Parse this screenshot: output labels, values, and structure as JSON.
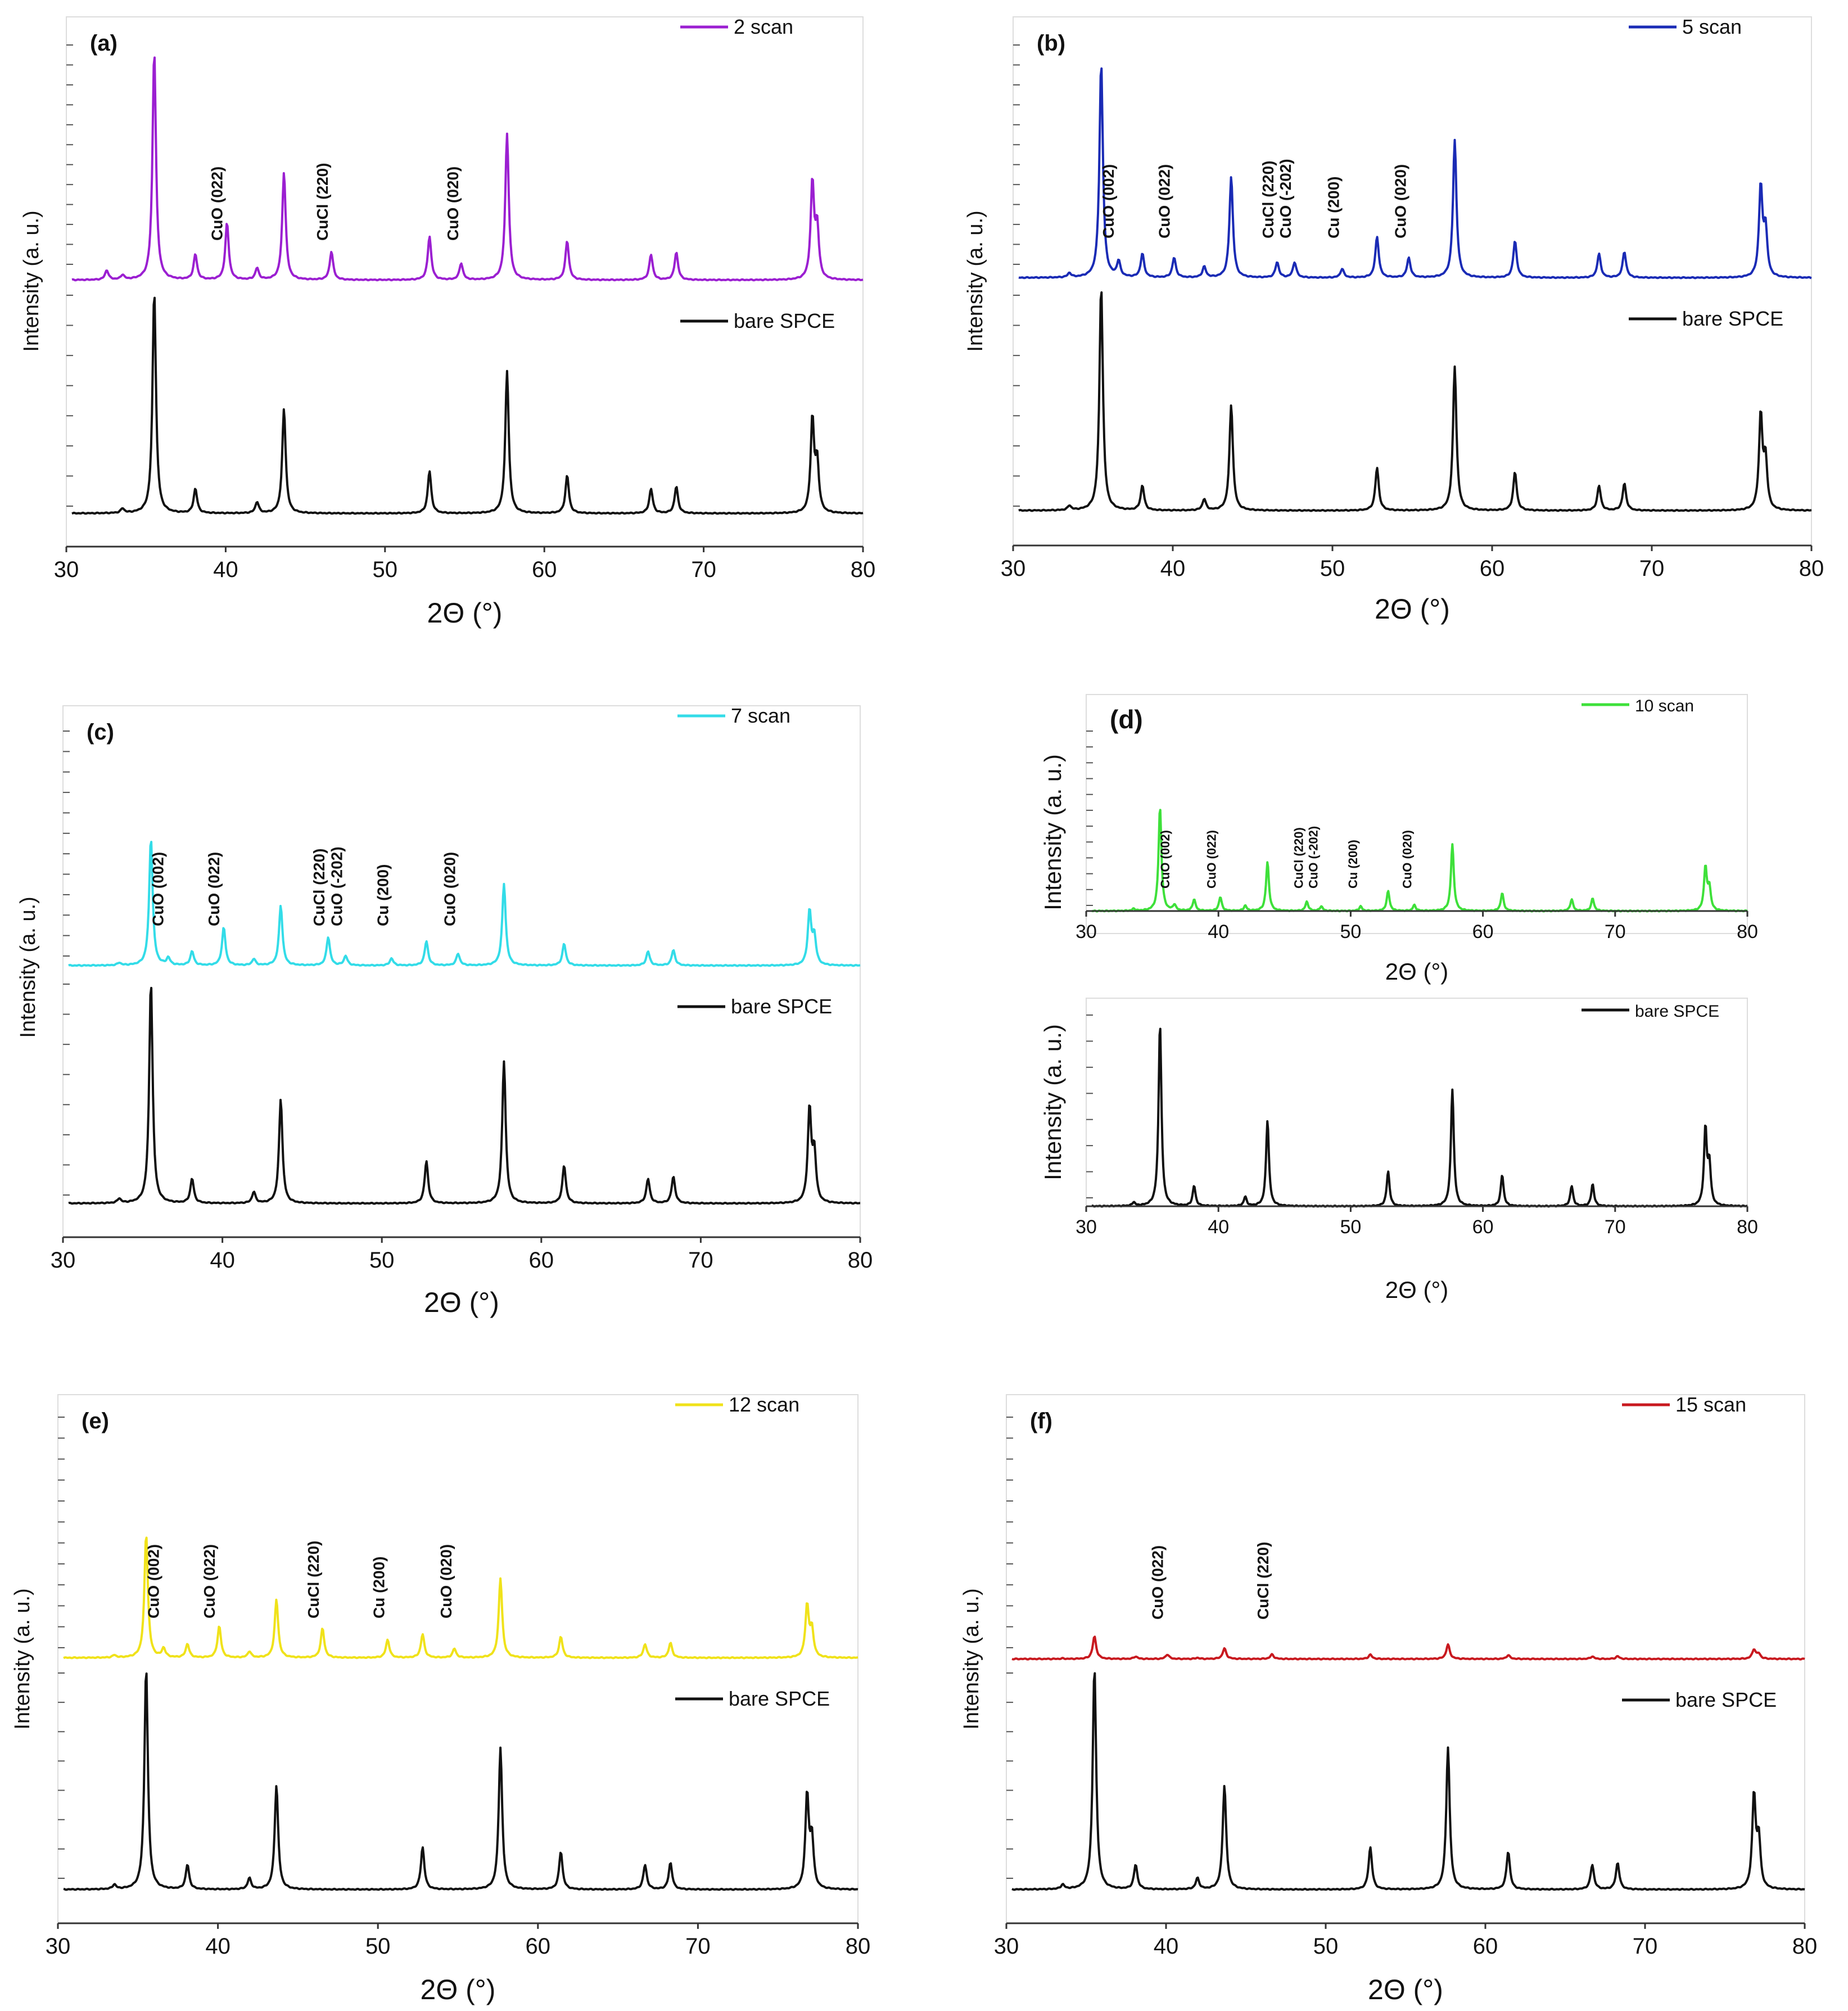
{
  "figure": {
    "common": {
      "peaks": [
        {
          "x": 33.2,
          "h": 0.02
        },
        {
          "x": 35.2,
          "h": 1.0
        },
        {
          "x": 37.8,
          "h": 0.11
        },
        {
          "x": 41.7,
          "h": 0.05
        },
        {
          "x": 43.4,
          "h": 0.47
        },
        {
          "x": 52.6,
          "h": 0.19
        },
        {
          "x": 57.5,
          "h": 0.64
        },
        {
          "x": 61.3,
          "h": 0.17
        },
        {
          "x": 66.6,
          "h": 0.11
        },
        {
          "x": 68.2,
          "h": 0.12
        },
        {
          "x": 76.8,
          "h": 0.42
        },
        {
          "x": 77.1,
          "h": 0.22
        }
      ]
    },
    "panels": [
      {
        "label": "(a)",
        "legend_upper": "2 scan",
        "legend_lower": "bare SPCE",
        "color": "#9b1fd1",
        "peak_scale": 0.97,
        "annotations": [
          "CuO (022)",
          "CuCl (220)",
          "CuO (020)"
        ],
        "chart_data": {
          "type": "line",
          "title": "(a)",
          "xlabel": "2Θ (°)",
          "ylabel": "Intensity (a. u.)",
          "xlim": [
            30,
            80
          ],
          "x_ticks": [
            "30",
            "40",
            "50",
            "60",
            "70",
            "80"
          ],
          "series": [
            {
              "name": "2 scan",
              "extra_peaks": [
                {
                  "x": 32.2,
                  "h": 0.04
                },
                {
                  "x": 39.8,
                  "h": 0.24
                },
                {
                  "x": 46.4,
                  "h": 0.12
                },
                {
                  "x": 54.6,
                  "h": 0.07
                }
              ]
            },
            {
              "name": "bare SPCE"
            }
          ],
          "annotation_positions": [
            39.8,
            46.4,
            54.6
          ]
        }
      },
      {
        "label": "(b)",
        "legend_upper": "5 scan",
        "legend_lower": "bare SPCE",
        "color": "#1a2bb5",
        "peak_scale": 0.98,
        "annotations": [
          "CuO (002)",
          "CuO (022)",
          "CuCl (220)",
          "CuO (-202)",
          "Cu (200)",
          "CuO (020)"
        ],
        "chart_data": {
          "type": "line",
          "title": "(b)",
          "xlabel": "2Θ (°)",
          "ylabel": "Intensity (a. u.)",
          "xlim": [
            30,
            80
          ],
          "x_ticks": [
            "30",
            "40",
            "50",
            "60",
            "70",
            "80"
          ],
          "series": [
            {
              "name": "5 scan",
              "extra_peaks": [
                {
                  "x": 36.3,
                  "h": 0.07
                },
                {
                  "x": 39.8,
                  "h": 0.09
                },
                {
                  "x": 46.3,
                  "h": 0.07
                },
                {
                  "x": 47.4,
                  "h": 0.07
                },
                {
                  "x": 50.4,
                  "h": 0.04
                },
                {
                  "x": 54.6,
                  "h": 0.09
                }
              ]
            },
            {
              "name": "bare SPCE"
            }
          ],
          "annotation_positions": [
            36.3,
            39.8,
            46.3,
            47.4,
            50.4,
            54.6
          ]
        }
      },
      {
        "label": "(c)",
        "legend_upper": "7 scan",
        "legend_lower": "bare SPCE",
        "color": "#33dce8",
        "peak_scale": 0.54,
        "annotations": [
          "CuO (002)",
          "CuO (022)",
          "CuCl (220)",
          "CuO (-202)",
          "Cu (200)",
          "CuO (020)"
        ],
        "chart_data": {
          "type": "line",
          "title": "(c)",
          "xlabel": "2Θ (°)",
          "ylabel": "Intensity (a. u.)",
          "xlim": [
            30,
            80
          ],
          "x_ticks": [
            "30",
            "40",
            "50",
            "60",
            "70",
            "80"
          ],
          "series": [
            {
              "name": "7 scan",
              "extra_peaks": [
                {
                  "x": 36.3,
                  "h": 0.03
                },
                {
                  "x": 39.8,
                  "h": 0.16
                },
                {
                  "x": 46.4,
                  "h": 0.12
                },
                {
                  "x": 47.5,
                  "h": 0.04
                },
                {
                  "x": 50.4,
                  "h": 0.03
                },
                {
                  "x": 54.6,
                  "h": 0.05
                }
              ]
            },
            {
              "name": "bare SPCE"
            }
          ],
          "annotation_positions": [
            36.3,
            39.8,
            46.4,
            47.5,
            50.4,
            54.6
          ]
        }
      },
      {
        "label": "(d)",
        "legend_upper": "10 scan",
        "legend_lower": "bare SPCE",
        "color": "#3ee03a",
        "peak_scale": 0.9,
        "annotations": [
          "CuO (002)",
          "CuO (022)",
          "CuCl (220)",
          "CuO (-202)",
          "Cu (200)",
          "CuO (020)"
        ],
        "chart_data": {
          "type": "line",
          "title": "(d)",
          "xlabel": "2Θ (°)",
          "ylabel": "Intensity (a. u.)",
          "xlim": [
            30,
            80
          ],
          "x_ticks": [
            "30",
            "40",
            "50",
            "60",
            "70",
            "80"
          ],
          "series": [
            {
              "name": "10 scan",
              "extra_peaks": [
                {
                  "x": 36.3,
                  "h": 0.05
                },
                {
                  "x": 39.8,
                  "h": 0.12
                },
                {
                  "x": 46.4,
                  "h": 0.08
                },
                {
                  "x": 47.5,
                  "h": 0.04
                },
                {
                  "x": 50.5,
                  "h": 0.04
                },
                {
                  "x": 54.6,
                  "h": 0.05
                }
              ]
            },
            {
              "name": "bare SPCE"
            }
          ],
          "annotation_positions": [
            36.3,
            39.8,
            46.4,
            47.5,
            50.5,
            54.6
          ]
        }
      },
      {
        "label": "(e)",
        "legend_upper": "12 scan",
        "legend_lower": "bare SPCE",
        "color": "#f0e21a",
        "peak_scale": 0.55,
        "annotations": [
          "CuO (002)",
          "CuO (022)",
          "CuCl (220)",
          "Cu (200)",
          "CuO (020)"
        ],
        "chart_data": {
          "type": "line",
          "title": "(e)",
          "xlabel": "2Θ (°)",
          "ylabel": "Intensity (a. u.)",
          "xlim": [
            30,
            80
          ],
          "x_ticks": [
            "30",
            "40",
            "50",
            "60",
            "70",
            "80"
          ],
          "series": [
            {
              "name": "12 scan",
              "extra_peaks": [
                {
                  "x": 36.3,
                  "h": 0.04
                },
                {
                  "x": 39.8,
                  "h": 0.14
                },
                {
                  "x": 46.3,
                  "h": 0.13
                },
                {
                  "x": 50.4,
                  "h": 0.08
                },
                {
                  "x": 54.6,
                  "h": 0.04
                }
              ]
            },
            {
              "name": "bare SPCE"
            }
          ],
          "annotation_positions": [
            36.3,
            39.8,
            46.3,
            50.4,
            54.6
          ]
        }
      },
      {
        "label": "(f)",
        "legend_upper": "15 scan",
        "legend_lower": "bare SPCE",
        "color": "#c8191f",
        "peak_scale": 0.1,
        "annotations": [
          "CuO (022)",
          "CuCl (220)"
        ],
        "chart_data": {
          "type": "line",
          "title": "(f)",
          "xlabel": "2Θ (°)",
          "ylabel": "Intensity (a. u.)",
          "xlim": [
            30,
            80
          ],
          "x_ticks": [
            "30",
            "40",
            "50",
            "60",
            "70",
            "80"
          ],
          "series": [
            {
              "name": "15 scan",
              "extra_peaks": [
                {
                  "x": 39.8,
                  "h": 0.02
                },
                {
                  "x": 46.4,
                  "h": 0.02
                }
              ]
            },
            {
              "name": "bare SPCE"
            }
          ],
          "annotation_positions": [
            39.8,
            46.4
          ]
        }
      }
    ]
  }
}
